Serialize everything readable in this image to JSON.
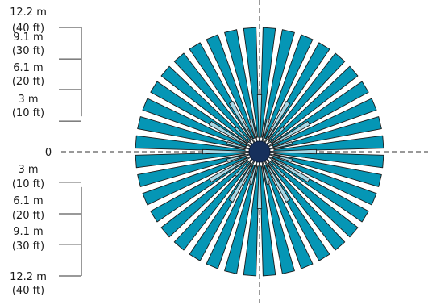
{
  "scale": {
    "ticks": [
      {
        "offset_m": 12.2,
        "line1": "12.2 m",
        "line2": "(40 ft)"
      },
      {
        "offset_m": 9.1,
        "line1": "9.1 m",
        "line2": "(30 ft)"
      },
      {
        "offset_m": 6.1,
        "line1": "6.1 m",
        "line2": "(20 ft)"
      },
      {
        "offset_m": 3,
        "line1": "3 m",
        "line2": "(10 ft)"
      },
      {
        "offset_m": 0,
        "line1": "0",
        "line2": ""
      },
      {
        "offset_m": -3,
        "line1": "3 m",
        "line2": "(10 ft)"
      },
      {
        "offset_m": -6.1,
        "line1": "6.1 m",
        "line2": "(20 ft)"
      },
      {
        "offset_m": -9.1,
        "line1": "9.1 m",
        "line2": "(30 ft)"
      },
      {
        "offset_m": -12.2,
        "line1": "12.2 m",
        "line2": "(40 ft)"
      }
    ]
  },
  "pattern": {
    "outer_zone_count": 40,
    "outer_zone_range_m": 12.2,
    "inner_zone_count": 24,
    "inner_zone_range_m": [
      5.6,
      3.3
    ],
    "colors": {
      "outer_zone": "#0596b5",
      "inner_zone": "#a9d8e6",
      "zone_stroke": "#1a1a1a",
      "sensor": "#16305c",
      "axis": "#333333"
    }
  }
}
